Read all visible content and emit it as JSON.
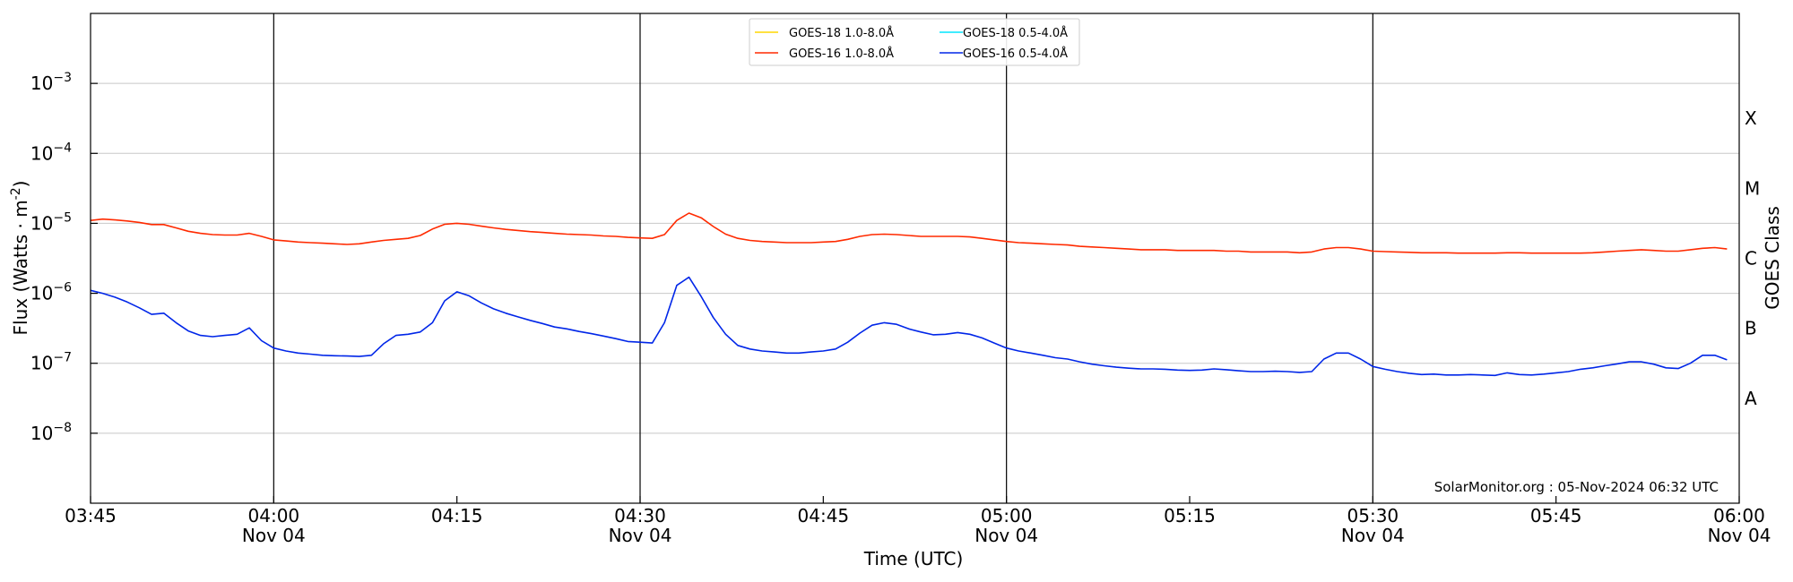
{
  "chart_data": {
    "type": "line",
    "title": "",
    "xlabel": "Time (UTC)",
    "ylabel": "Flux (Watts · m",
    "ylabel_exp": "-2",
    "ylabel_close": ")",
    "right_label": "GOES Class",
    "x_range_minutes": [
      -15,
      120
    ],
    "ylim_log10": [
      -9,
      -2
    ],
    "y_ticks": [
      {
        "exp": -8,
        "base": "10",
        "sup": "−8"
      },
      {
        "exp": -7,
        "base": "10",
        "sup": "−7"
      },
      {
        "exp": -6,
        "base": "10",
        "sup": "−6"
      },
      {
        "exp": -5,
        "base": "10",
        "sup": "−5"
      },
      {
        "exp": -4,
        "base": "10",
        "sup": "−4"
      },
      {
        "exp": -3,
        "base": "10",
        "sup": "−3"
      }
    ],
    "classes": [
      {
        "label": "A",
        "log": -7.5
      },
      {
        "label": "B",
        "log": -6.5
      },
      {
        "label": "C",
        "log": -5.5
      },
      {
        "label": "M",
        "log": -4.5
      },
      {
        "label": "X",
        "log": -3.5
      }
    ],
    "x_ticks": [
      {
        "t": -15,
        "l1": "03:45",
        "l2": ""
      },
      {
        "t": 0,
        "l1": "04:00",
        "l2": "Nov 04"
      },
      {
        "t": 15,
        "l1": "04:15",
        "l2": ""
      },
      {
        "t": 30,
        "l1": "04:30",
        "l2": "Nov 04"
      },
      {
        "t": 45,
        "l1": "04:45",
        "l2": ""
      },
      {
        "t": 60,
        "l1": "05:00",
        "l2": "Nov 04"
      },
      {
        "t": 75,
        "l1": "05:15",
        "l2": ""
      },
      {
        "t": 90,
        "l1": "05:30",
        "l2": "Nov 04"
      },
      {
        "t": 105,
        "l1": "05:45",
        "l2": ""
      },
      {
        "t": 120,
        "l1": "06:00",
        "l2": "Nov 04"
      }
    ],
    "vlines": [
      0,
      30,
      60,
      90
    ],
    "grid": true,
    "legend_position": "top-center",
    "legend": [
      {
        "name": "GOES-18 1.0-8.0Å",
        "color": "#ffd700"
      },
      {
        "name": "GOES-18 0.5-4.0Å",
        "color": "#00e5ff"
      },
      {
        "name": "GOES-16 1.0-8.0Å",
        "color": "#ff2a00"
      },
      {
        "name": "GOES-16 0.5-4.0Å",
        "color": "#0026e8"
      }
    ],
    "annotation": "SolarMonitor.org : 05-Nov-2024 06:32 UTC",
    "series": [
      {
        "name": "GOES-16 1.0-8.0Å",
        "color": "#ff2a00",
        "values": [
          [
            -15,
            1.1e-05
          ],
          [
            -14,
            1.15e-05
          ],
          [
            -13,
            1.12e-05
          ],
          [
            -12,
            1.08e-05
          ],
          [
            -11,
            1.03e-05
          ],
          [
            -10,
            9.6e-06
          ],
          [
            -9,
            9.6e-06
          ],
          [
            -8,
            8.6e-06
          ],
          [
            -7,
            7.7e-06
          ],
          [
            -6,
            7.2e-06
          ],
          [
            -5,
            6.9e-06
          ],
          [
            -4,
            6.8e-06
          ],
          [
            -3,
            6.8e-06
          ],
          [
            -2,
            7.2e-06
          ],
          [
            -1,
            6.5e-06
          ],
          [
            0,
            5.8e-06
          ],
          [
            1,
            5.6e-06
          ],
          [
            2,
            5.4e-06
          ],
          [
            3,
            5.3e-06
          ],
          [
            4,
            5.2e-06
          ],
          [
            5,
            5.1e-06
          ],
          [
            6,
            5e-06
          ],
          [
            7,
            5.1e-06
          ],
          [
            8,
            5.4e-06
          ],
          [
            9,
            5.7e-06
          ],
          [
            10,
            5.9e-06
          ],
          [
            11,
            6.1e-06
          ],
          [
            12,
            6.7e-06
          ],
          [
            13,
            8.3e-06
          ],
          [
            14,
            9.7e-06
          ],
          [
            15,
            1e-05
          ],
          [
            16,
            9.7e-06
          ],
          [
            17,
            9.1e-06
          ],
          [
            18,
            8.6e-06
          ],
          [
            19,
            8.2e-06
          ],
          [
            20,
            7.9e-06
          ],
          [
            21,
            7.6e-06
          ],
          [
            22,
            7.4e-06
          ],
          [
            23,
            7.2e-06
          ],
          [
            24,
            7e-06
          ],
          [
            25,
            6.9e-06
          ],
          [
            26,
            6.8e-06
          ],
          [
            27,
            6.6e-06
          ],
          [
            28,
            6.5e-06
          ],
          [
            29,
            6.3e-06
          ],
          [
            30,
            6.2e-06
          ],
          [
            31,
            6.1e-06
          ],
          [
            32,
            6.9e-06
          ],
          [
            33,
            1.1e-05
          ],
          [
            34,
            1.4e-05
          ],
          [
            35,
            1.2e-05
          ],
          [
            36,
            9e-06
          ],
          [
            37,
            7e-06
          ],
          [
            38,
            6.1e-06
          ],
          [
            39,
            5.7e-06
          ],
          [
            40,
            5.5e-06
          ],
          [
            41,
            5.4e-06
          ],
          [
            42,
            5.3e-06
          ],
          [
            43,
            5.3e-06
          ],
          [
            44,
            5.3e-06
          ],
          [
            45,
            5.4e-06
          ],
          [
            46,
            5.5e-06
          ],
          [
            47,
            5.9e-06
          ],
          [
            48,
            6.5e-06
          ],
          [
            49,
            6.9e-06
          ],
          [
            50,
            7e-06
          ],
          [
            51,
            6.9e-06
          ],
          [
            52,
            6.7e-06
          ],
          [
            53,
            6.5e-06
          ],
          [
            54,
            6.5e-06
          ],
          [
            55,
            6.5e-06
          ],
          [
            56,
            6.5e-06
          ],
          [
            57,
            6.4e-06
          ],
          [
            58,
            6.1e-06
          ],
          [
            59,
            5.8e-06
          ],
          [
            60,
            5.5e-06
          ],
          [
            61,
            5.3e-06
          ],
          [
            62,
            5.2e-06
          ],
          [
            63,
            5.1e-06
          ],
          [
            64,
            5e-06
          ],
          [
            65,
            4.9e-06
          ],
          [
            66,
            4.7e-06
          ],
          [
            67,
            4.6e-06
          ],
          [
            68,
            4.5e-06
          ],
          [
            69,
            4.4e-06
          ],
          [
            70,
            4.3e-06
          ],
          [
            71,
            4.2e-06
          ],
          [
            72,
            4.2e-06
          ],
          [
            73,
            4.2e-06
          ],
          [
            74,
            4.1e-06
          ],
          [
            75,
            4.1e-06
          ],
          [
            76,
            4.1e-06
          ],
          [
            77,
            4.1e-06
          ],
          [
            78,
            4e-06
          ],
          [
            79,
            4e-06
          ],
          [
            80,
            3.9e-06
          ],
          [
            81,
            3.9e-06
          ],
          [
            82,
            3.9e-06
          ],
          [
            83,
            3.9e-06
          ],
          [
            84,
            3.8e-06
          ],
          [
            85,
            3.9e-06
          ],
          [
            86,
            4.3e-06
          ],
          [
            87,
            4.5e-06
          ],
          [
            88,
            4.5e-06
          ],
          [
            89,
            4.3e-06
          ],
          [
            90,
            4e-06
          ],
          [
            91,
            3.95e-06
          ],
          [
            92,
            3.9e-06
          ],
          [
            93,
            3.85e-06
          ],
          [
            94,
            3.8e-06
          ],
          [
            95,
            3.8e-06
          ],
          [
            96,
            3.8e-06
          ],
          [
            97,
            3.75e-06
          ],
          [
            98,
            3.75e-06
          ],
          [
            99,
            3.75e-06
          ],
          [
            100,
            3.75e-06
          ],
          [
            101,
            3.8e-06
          ],
          [
            102,
            3.8e-06
          ],
          [
            103,
            3.75e-06
          ],
          [
            104,
            3.75e-06
          ],
          [
            105,
            3.75e-06
          ],
          [
            106,
            3.75e-06
          ],
          [
            107,
            3.75e-06
          ],
          [
            108,
            3.8e-06
          ],
          [
            109,
            3.9e-06
          ],
          [
            110,
            4e-06
          ],
          [
            111,
            4.1e-06
          ],
          [
            112,
            4.2e-06
          ],
          [
            113,
            4.1e-06
          ],
          [
            114,
            4e-06
          ],
          [
            115,
            4e-06
          ],
          [
            116,
            4.2e-06
          ],
          [
            117,
            4.4e-06
          ],
          [
            118,
            4.5e-06
          ],
          [
            119,
            4.3e-06
          ]
        ]
      },
      {
        "name": "GOES-16 0.5-4.0Å",
        "color": "#0026e8",
        "values": [
          [
            -15,
            1.1e-06
          ],
          [
            -14,
            1e-06
          ],
          [
            -13,
            8.8e-07
          ],
          [
            -12,
            7.5e-07
          ],
          [
            -11,
            6.2e-07
          ],
          [
            -10,
            5e-07
          ],
          [
            -9,
            5.2e-07
          ],
          [
            -8,
            3.8e-07
          ],
          [
            -7,
            2.9e-07
          ],
          [
            -6,
            2.5e-07
          ],
          [
            -5,
            2.4e-07
          ],
          [
            -4,
            2.5e-07
          ],
          [
            -3,
            2.6e-07
          ],
          [
            -2,
            3.2e-07
          ],
          [
            -1,
            2.1e-07
          ],
          [
            0,
            1.65e-07
          ],
          [
            1,
            1.5e-07
          ],
          [
            2,
            1.4e-07
          ],
          [
            3,
            1.35e-07
          ],
          [
            4,
            1.3e-07
          ],
          [
            5,
            1.28e-07
          ],
          [
            6,
            1.27e-07
          ],
          [
            7,
            1.25e-07
          ],
          [
            8,
            1.3e-07
          ],
          [
            9,
            1.9e-07
          ],
          [
            10,
            2.5e-07
          ],
          [
            11,
            2.6e-07
          ],
          [
            12,
            2.8e-07
          ],
          [
            13,
            3.8e-07
          ],
          [
            14,
            7.8e-07
          ],
          [
            15,
            1.05e-06
          ],
          [
            16,
            9.2e-07
          ],
          [
            17,
            7.3e-07
          ],
          [
            18,
            6e-07
          ],
          [
            19,
            5.2e-07
          ],
          [
            20,
            4.6e-07
          ],
          [
            21,
            4.1e-07
          ],
          [
            22,
            3.7e-07
          ],
          [
            23,
            3.3e-07
          ],
          [
            24,
            3.1e-07
          ],
          [
            25,
            2.85e-07
          ],
          [
            26,
            2.65e-07
          ],
          [
            27,
            2.45e-07
          ],
          [
            28,
            2.25e-07
          ],
          [
            29,
            2.05e-07
          ],
          [
            30,
            2e-07
          ],
          [
            31,
            1.95e-07
          ],
          [
            32,
            3.8e-07
          ],
          [
            33,
            1.3e-06
          ],
          [
            34,
            1.7e-06
          ],
          [
            35,
            9e-07
          ],
          [
            36,
            4.5e-07
          ],
          [
            37,
            2.6e-07
          ],
          [
            38,
            1.8e-07
          ],
          [
            39,
            1.6e-07
          ],
          [
            40,
            1.5e-07
          ],
          [
            41,
            1.45e-07
          ],
          [
            42,
            1.4e-07
          ],
          [
            43,
            1.4e-07
          ],
          [
            44,
            1.45e-07
          ],
          [
            45,
            1.5e-07
          ],
          [
            46,
            1.6e-07
          ],
          [
            47,
            2e-07
          ],
          [
            48,
            2.7e-07
          ],
          [
            49,
            3.5e-07
          ],
          [
            50,
            3.8e-07
          ],
          [
            51,
            3.6e-07
          ],
          [
            52,
            3.1e-07
          ],
          [
            53,
            2.8e-07
          ],
          [
            54,
            2.55e-07
          ],
          [
            55,
            2.6e-07
          ],
          [
            56,
            2.75e-07
          ],
          [
            57,
            2.6e-07
          ],
          [
            58,
            2.3e-07
          ],
          [
            59,
            1.95e-07
          ],
          [
            60,
            1.65e-07
          ],
          [
            61,
            1.5e-07
          ],
          [
            62,
            1.4e-07
          ],
          [
            63,
            1.3e-07
          ],
          [
            64,
            1.2e-07
          ],
          [
            65,
            1.15e-07
          ],
          [
            66,
            1.05e-07
          ],
          [
            67,
            9.7e-08
          ],
          [
            68,
            9.2e-08
          ],
          [
            69,
            8.8e-08
          ],
          [
            70,
            8.5e-08
          ],
          [
            71,
            8.3e-08
          ],
          [
            72,
            8.3e-08
          ],
          [
            73,
            8.2e-08
          ],
          [
            74,
            8e-08
          ],
          [
            75,
            7.9e-08
          ],
          [
            76,
            8e-08
          ],
          [
            77,
            8.3e-08
          ],
          [
            78,
            8.1e-08
          ],
          [
            79,
            7.8e-08
          ],
          [
            80,
            7.6e-08
          ],
          [
            81,
            7.6e-08
          ],
          [
            82,
            7.7e-08
          ],
          [
            83,
            7.6e-08
          ],
          [
            84,
            7.4e-08
          ],
          [
            85,
            7.6e-08
          ],
          [
            86,
            1.15e-07
          ],
          [
            87,
            1.4e-07
          ],
          [
            88,
            1.4e-07
          ],
          [
            89,
            1.15e-07
          ],
          [
            90,
            9e-08
          ],
          [
            91,
            8.2e-08
          ],
          [
            92,
            7.6e-08
          ],
          [
            93,
            7.2e-08
          ],
          [
            94,
            6.9e-08
          ],
          [
            95,
            7e-08
          ],
          [
            96,
            6.8e-08
          ],
          [
            97,
            6.8e-08
          ],
          [
            98,
            6.9e-08
          ],
          [
            99,
            6.8e-08
          ],
          [
            100,
            6.7e-08
          ],
          [
            101,
            7.3e-08
          ],
          [
            102,
            6.9e-08
          ],
          [
            103,
            6.8e-08
          ],
          [
            104,
            7e-08
          ],
          [
            105,
            7.3e-08
          ],
          [
            106,
            7.6e-08
          ],
          [
            107,
            8.2e-08
          ],
          [
            108,
            8.6e-08
          ],
          [
            109,
            9.2e-08
          ],
          [
            110,
            9.8e-08
          ],
          [
            111,
            1.05e-07
          ],
          [
            112,
            1.05e-07
          ],
          [
            113,
            9.7e-08
          ],
          [
            114,
            8.6e-08
          ],
          [
            115,
            8.4e-08
          ],
          [
            116,
            1e-07
          ],
          [
            117,
            1.3e-07
          ],
          [
            118,
            1.3e-07
          ],
          [
            119,
            1.12e-07
          ]
        ]
      }
    ]
  }
}
